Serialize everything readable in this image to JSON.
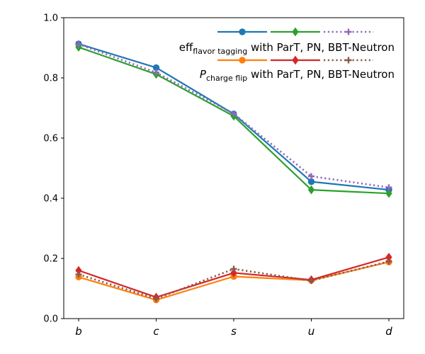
{
  "chart_data": {
    "type": "line",
    "categories": [
      "b",
      "c",
      "s",
      "u",
      "d"
    ],
    "ylim": [
      0,
      1.0
    ],
    "yticks": [
      0.0,
      0.2,
      0.4,
      0.6,
      0.8,
      1.0
    ],
    "ytick_labels": [
      "0.0",
      "0.2",
      "0.4",
      "0.6",
      "0.8",
      "1.0"
    ],
    "series": [
      {
        "id": "eff-part",
        "name": "eff flavor tagging ParT",
        "color": "#1f77b4",
        "marker": "circle",
        "style": "solid",
        "values": [
          0.913,
          0.834,
          0.68,
          0.455,
          0.428
        ]
      },
      {
        "id": "eff-pn",
        "name": "eff flavor tagging PN",
        "color": "#2ca02c",
        "marker": "diamond",
        "style": "solid",
        "values": [
          0.902,
          0.812,
          0.673,
          0.428,
          0.416
        ]
      },
      {
        "id": "eff-bbt",
        "name": "eff flavor tagging BBT-Neutron",
        "color": "#9467bd",
        "marker": "plus",
        "style": "dotted",
        "values": [
          0.912,
          0.818,
          0.681,
          0.473,
          0.436
        ]
      },
      {
        "id": "pcf-part",
        "name": "P charge flip ParT",
        "color": "#ff7f0e",
        "marker": "circle",
        "style": "solid",
        "values": [
          0.138,
          0.062,
          0.14,
          0.127,
          0.188
        ]
      },
      {
        "id": "pcf-pn",
        "name": "P charge flip PN",
        "color": "#d62728",
        "marker": "diamond",
        "style": "solid",
        "values": [
          0.16,
          0.071,
          0.152,
          0.129,
          0.204
        ]
      },
      {
        "id": "pcf-bbt",
        "name": "P charge flip BBT-Neutron",
        "color": "#8c564b",
        "marker": "plus",
        "style": "dotted",
        "values": [
          0.147,
          0.066,
          0.165,
          0.126,
          0.19
        ]
      }
    ],
    "legend": {
      "placement": "top-right",
      "rows": [
        {
          "main": "eff",
          "sub": "flavor tagging",
          "rest": " with ParT, PN, BBT-Neutron",
          "italic_main": false,
          "series": [
            "eff-part",
            "eff-pn",
            "eff-bbt"
          ]
        },
        {
          "main": "P",
          "sub": "charge flip",
          "rest": " with ParT, PN, BBT-Neutron",
          "italic_main": true,
          "series": [
            "pcf-part",
            "pcf-pn",
            "pcf-bbt"
          ]
        }
      ]
    }
  }
}
